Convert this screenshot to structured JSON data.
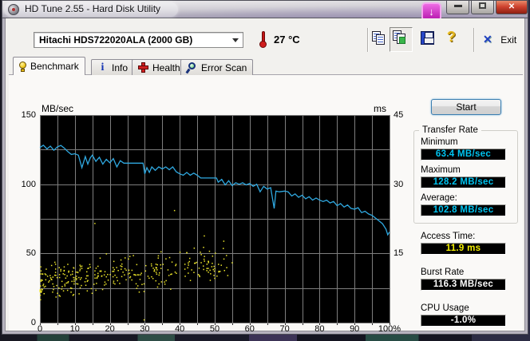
{
  "window": {
    "title": "HD Tune 2.55 - Hard Disk Utility",
    "buttons": {
      "minimize": "minimize",
      "maximize": "maximize",
      "close": "close"
    },
    "overlay_badge": "download-arrow"
  },
  "toolbar": {
    "drive_select": "Hitachi HDS722020ALA (2000 GB)",
    "temperature": "27 °C",
    "icons": [
      "copy-text-icon",
      "copy-screenshot-icon",
      "save-icon",
      "help-icon"
    ],
    "exit_x": "✕",
    "exit_label": "Exit"
  },
  "tabs": [
    {
      "label": "Benchmark",
      "icon": "benchmark-icon",
      "active": true
    },
    {
      "label": "Info",
      "icon": "info-icon",
      "active": false
    },
    {
      "label": "Health",
      "icon": "health-icon",
      "active": false
    },
    {
      "label": "Error Scan",
      "icon": "error-scan-icon",
      "active": false
    }
  ],
  "panel": {
    "start_label": "Start",
    "transfer_rate": {
      "title": "Transfer Rate",
      "minimum_label": "Minimum",
      "minimum_value": "63.4 MB/sec",
      "maximum_label": "Maximum",
      "maximum_value": "128.2 MB/sec",
      "average_label": "Average:",
      "average_value": "102.8 MB/sec"
    },
    "access_time_label": "Access Time:",
    "access_time_value": "11.9 ms",
    "burst_rate_label": "Burst Rate",
    "burst_rate_value": "116.3 MB/sec",
    "cpu_usage_label": "CPU Usage",
    "cpu_usage_value": "-1.0%"
  },
  "chart_data": {
    "type": "line+scatter",
    "title": "",
    "xlabel_ticks": [
      "0",
      "10",
      "20",
      "30",
      "40",
      "50",
      "60",
      "70",
      "80",
      "90",
      "100%"
    ],
    "x_range": [
      0,
      100
    ],
    "y_left_label": "MB/sec",
    "y_left_range": [
      0,
      150
    ],
    "y_left_ticks": [
      {
        "v": 150,
        "t": "150"
      },
      {
        "v": 100,
        "t": "100"
      },
      {
        "v": 50,
        "t": "50"
      },
      {
        "v": 0,
        "t": "0"
      }
    ],
    "y_right_label": "ms",
    "y_right_range": [
      0,
      45
    ],
    "y_right_ticks": [
      {
        "v": 45,
        "t": "45"
      },
      {
        "v": 30,
        "t": "30"
      },
      {
        "v": 15,
        "t": "15"
      }
    ],
    "grid": {
      "x_step_pct": 5,
      "y_step_mbs": 25,
      "color": "#7e7e7e",
      "plot_bg": "#000000"
    },
    "transfer_rate_series": {
      "name": "transfer rate",
      "color": "#2fa8e0",
      "points": [
        [
          0,
          126.5
        ],
        [
          1,
          128.2
        ],
        [
          2,
          125.5
        ],
        [
          3,
          127.5
        ],
        [
          4,
          124.5
        ],
        [
          5,
          127
        ],
        [
          6,
          128
        ],
        [
          7,
          126
        ],
        [
          8,
          123.5
        ],
        [
          9,
          121.5
        ],
        [
          10,
          122
        ],
        [
          11,
          121
        ],
        [
          12,
          112
        ],
        [
          13,
          120
        ],
        [
          13.7,
          114.5
        ],
        [
          14.4,
          119
        ],
        [
          15,
          121
        ],
        [
          16,
          116.5
        ],
        [
          17,
          119.5
        ],
        [
          18,
          114.5
        ],
        [
          19,
          118
        ],
        [
          20,
          115.5
        ],
        [
          21,
          118.5
        ],
        [
          22,
          112.5
        ],
        [
          23,
          117
        ],
        [
          24,
          115.2
        ],
        [
          26,
          115.2
        ],
        [
          28,
          115.2
        ],
        [
          29.5,
          115.2
        ],
        [
          30,
          107.5
        ],
        [
          30.6,
          112
        ],
        [
          31.3,
          108.5
        ],
        [
          32,
          112.5
        ],
        [
          33,
          110
        ],
        [
          34,
          112.5
        ],
        [
          35,
          111
        ],
        [
          36,
          112.5
        ],
        [
          37,
          110.5
        ],
        [
          38,
          112.5
        ],
        [
          39,
          109
        ],
        [
          40,
          107.5
        ],
        [
          41,
          106.5
        ],
        [
          42,
          108.5
        ],
        [
          43,
          106.5
        ],
        [
          44,
          108
        ],
        [
          45,
          106.5
        ],
        [
          46,
          104.5
        ],
        [
          48,
          104.5
        ],
        [
          50.5,
          104.5
        ],
        [
          51,
          101.5
        ],
        [
          52,
          103.5
        ],
        [
          53,
          99.5
        ],
        [
          54,
          102.5
        ],
        [
          55,
          99
        ],
        [
          56,
          101
        ],
        [
          57,
          100
        ],
        [
          58,
          101
        ],
        [
          59,
          99.5
        ],
        [
          60,
          100.5
        ],
        [
          61,
          98.5
        ],
        [
          62,
          100
        ],
        [
          63,
          94.5
        ],
        [
          64,
          98.5
        ],
        [
          65,
          96.5
        ],
        [
          66,
          97.5
        ],
        [
          67,
          82.5
        ],
        [
          67.5,
          95
        ],
        [
          68.5,
          94.5
        ],
        [
          70,
          95
        ],
        [
          71,
          94.5
        ],
        [
          72,
          91.5
        ],
        [
          73,
          93
        ],
        [
          74,
          90.5
        ],
        [
          75,
          92
        ],
        [
          76,
          89.5
        ],
        [
          77,
          91
        ],
        [
          78,
          88.5
        ],
        [
          79,
          90
        ],
        [
          80,
          88.5
        ],
        [
          81,
          87.5
        ],
        [
          82,
          88.5
        ],
        [
          83,
          86.5
        ],
        [
          84,
          87.5
        ],
        [
          85,
          84.5
        ],
        [
          86,
          86
        ],
        [
          87,
          83.5
        ],
        [
          88,
          85
        ],
        [
          89,
          82.5
        ],
        [
          90,
          82
        ],
        [
          91,
          83
        ],
        [
          92,
          79.5
        ],
        [
          93,
          80.5
        ],
        [
          94,
          78.5
        ],
        [
          95,
          77.5
        ],
        [
          96,
          75.5
        ],
        [
          97,
          73.5
        ],
        [
          98,
          71.5
        ],
        [
          99,
          67.5
        ],
        [
          99.5,
          63.4
        ],
        [
          100,
          65.5
        ]
      ]
    },
    "access_time_scatter": {
      "name": "access time",
      "color": "#ece42a",
      "unit": "ms",
      "seed": 1337,
      "count": 330,
      "x_max_pct": 55,
      "x_bias": 1.35,
      "ms_base_at_0": 8.8,
      "ms_base_at_max": 13.2,
      "spread_ms": 4.6,
      "ms_min": 1.5,
      "ms_max": 19.5,
      "outliers": [
        [
          15.7,
          21.5
        ],
        [
          38.5,
          24.3
        ],
        [
          29.8,
          0.6
        ],
        [
          47,
          18.8
        ]
      ]
    }
  }
}
